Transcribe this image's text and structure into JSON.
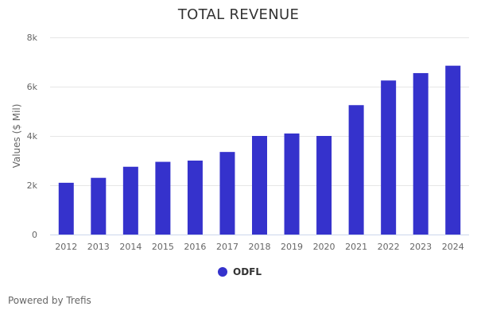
{
  "chart_data": {
    "type": "bar",
    "title": "TOTAL REVENUE",
    "xlabel": "",
    "ylabel": "Values ($ Mil)",
    "categories": [
      "2012",
      "2013",
      "2014",
      "2015",
      "2016",
      "2017",
      "2018",
      "2019",
      "2020",
      "2021",
      "2022",
      "2023",
      "2024"
    ],
    "series": [
      {
        "name": "ODFL",
        "values": [
          2100,
          2300,
          2750,
          2950,
          3000,
          3350,
          4000,
          4100,
          4000,
          5250,
          6250,
          6550,
          6850
        ]
      }
    ],
    "ylim": [
      0,
      8000
    ],
    "yticks": [
      0,
      2000,
      4000,
      6000,
      8000
    ],
    "ytick_labels": [
      "0",
      "2k",
      "4k",
      "6k",
      "8k"
    ],
    "grid": true,
    "legend_position": "bottom-center",
    "colors": {
      "bar": "#3532cc",
      "grid": "#e6e6e6",
      "axis": "#ccd6eb"
    }
  },
  "credits": "Powered by Trefis"
}
